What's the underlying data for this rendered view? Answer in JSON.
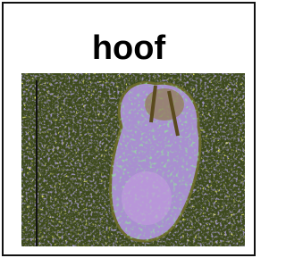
{
  "card": {
    "title": "hoof"
  }
}
